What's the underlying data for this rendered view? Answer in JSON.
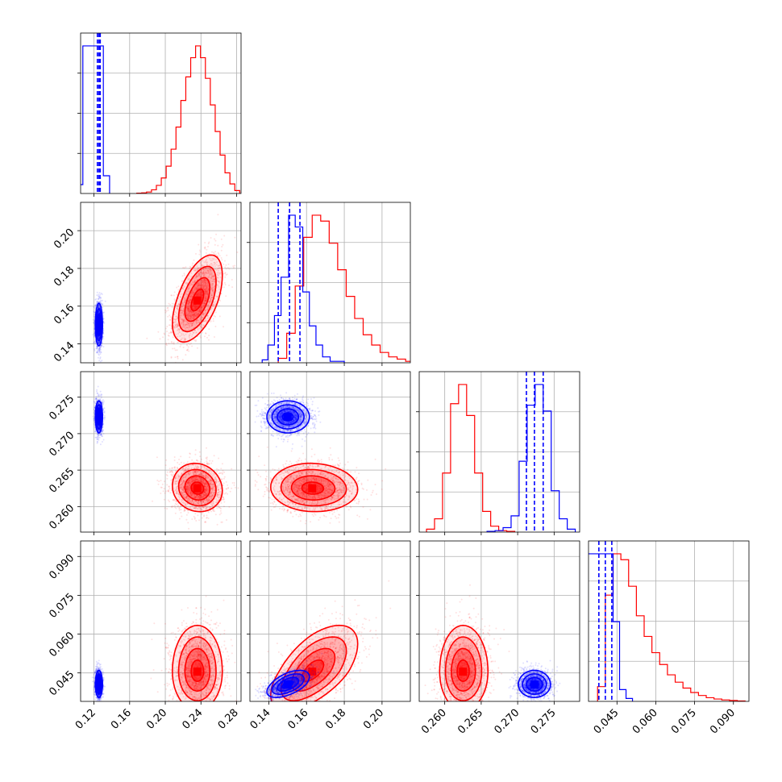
{
  "chart_data": {
    "type": "scatter",
    "layout": "corner",
    "grid": true,
    "legend": "none",
    "colors": {
      "a": "#ff0000",
      "b": "#0000ff"
    },
    "params": [
      {
        "id": "p0",
        "range": [
          0.105,
          0.285
        ],
        "ticks": [
          0.12,
          0.16,
          0.2,
          0.24,
          0.28
        ],
        "tick_labels": [
          "0.12",
          "0.16",
          "0.20",
          "0.24",
          "0.28"
        ]
      },
      {
        "id": "p1",
        "range": [
          0.13,
          0.215
        ],
        "ticks": [
          0.14,
          0.16,
          0.18,
          0.2
        ],
        "tick_labels": [
          "0.14",
          "0.16",
          "0.18",
          "0.20"
        ]
      },
      {
        "id": "p2",
        "range": [
          0.2565,
          0.2785
        ],
        "ticks": [
          0.26,
          0.265,
          0.27,
          0.275
        ],
        "tick_labels": [
          "0.260",
          "0.265",
          "0.270",
          "0.275"
        ]
      },
      {
        "id": "p3",
        "range": [
          0.034,
          0.096
        ],
        "ticks": [
          0.045,
          0.06,
          0.075,
          0.09
        ],
        "tick_labels": [
          "0.045",
          "0.060",
          "0.075",
          "0.090"
        ]
      }
    ],
    "series": [
      {
        "key": "a",
        "mean": [
          0.236,
          0.163,
          0.2625,
          0.0455
        ],
        "sd": [
          0.014,
          0.011,
          0.0016,
          0.0075
        ],
        "quantiles": [
          [
            0.222,
            0.236,
            0.25
          ],
          [
            0.152,
            0.163,
            0.175
          ],
          [
            0.261,
            0.2625,
            0.2642
          ],
          [
            0.04,
            0.0455,
            0.054
          ]
        ],
        "hists": [
          {
            "edges": [
              0.168,
              0.1735,
              0.179,
              0.1845,
              0.19,
              0.1955,
              0.201,
              0.2065,
              0.212,
              0.2175,
              0.223,
              0.2285,
              0.234,
              0.2395,
              0.245,
              0.2505,
              0.256,
              0.2615,
              0.267,
              0.2725,
              0.278,
              0.2835
            ],
            "counts": [
              0.2,
              0.4,
              1.0,
              2.5,
              5.5,
              10.5,
              18.5,
              30.0,
              45.0,
              63.0,
              79.0,
              92.0,
              100.0,
              92.0,
              78.0,
              60.0,
              42.0,
              26.0,
              14.0,
              6.5,
              2.0
            ]
          },
          {
            "edges": [
              0.145,
              0.1495,
              0.154,
              0.1585,
              0.163,
              0.1675,
              0.172,
              0.1765,
              0.181,
              0.1855,
              0.19,
              0.1945,
              0.199,
              0.2035,
              0.208,
              0.2125,
              0.217
            ],
            "counts": [
              3.0,
              20.0,
              52.0,
              85.0,
              100.0,
              96.0,
              81.0,
              63.0,
              45.0,
              30.0,
              19.0,
              12.0,
              7.0,
              4.0,
              2.5,
              1.0
            ]
          },
          {
            "edges": [
              0.2575,
              0.2586,
              0.2597,
              0.2608,
              0.2619,
              0.263,
              0.2641,
              0.2652,
              0.2663,
              0.2674,
              0.2685,
              0.2696
            ],
            "counts": [
              2.0,
              9.0,
              40.0,
              87.0,
              100.0,
              79.0,
              40.0,
              14.0,
              4.0,
              1.0,
              0.5
            ]
          },
          {
            "edges": [
              0.0375,
              0.0405,
              0.0435,
              0.0465,
              0.0495,
              0.0525,
              0.0555,
              0.0585,
              0.0615,
              0.0645,
              0.0675,
              0.0705,
              0.0735,
              0.0765,
              0.0795,
              0.0825,
              0.0855,
              0.0885,
              0.0915,
              0.0945
            ],
            "counts": [
              10.0,
              72.0,
              100.0,
              96.0,
              78.0,
              58.0,
              44.0,
              33.0,
              25.0,
              18.0,
              13.0,
              9.0,
              6.0,
              4.0,
              2.5,
              1.6,
              1.0,
              0.6,
              0.3
            ]
          }
        ]
      },
      {
        "key": "b",
        "mean": [
          0.1255,
          0.15,
          0.2723,
          0.0405
        ],
        "sd": [
          0.002,
          0.0055,
          0.0011,
          0.0025
        ],
        "quantiles": [
          [
            0.1238,
            0.1255,
            0.127
          ],
          [
            0.145,
            0.151,
            0.1565
          ],
          [
            0.2712,
            0.2723,
            0.2735
          ],
          [
            0.038,
            0.0405,
            0.043
          ]
        ],
        "hists": [
          {
            "edges": [
              0.1,
              0.1075,
              0.1155,
              0.123,
              0.1305,
              0.1375
            ],
            "counts": [
              6.0,
              100.0,
              100.0,
              100.0,
              12.0
            ]
          },
          {
            "edges": [
              0.1365,
              0.1395,
              0.143,
              0.1465,
              0.1505,
              0.154,
              0.158,
              0.1615,
              0.165,
              0.1685,
              0.1725,
              0.176,
              0.18
            ],
            "counts": [
              2.0,
              12.0,
              32.0,
              58.0,
              100.0,
              92.0,
              48.0,
              25.0,
              12.0,
              4.0,
              1.0,
              1.0
            ]
          },
          {
            "edges": [
              0.2658,
              0.2669,
              0.268,
              0.2691,
              0.2702,
              0.2713,
              0.2724,
              0.2735,
              0.2746,
              0.2757,
              0.2768,
              0.2779
            ],
            "counts": [
              0.5,
              1.0,
              3.0,
              11.0,
              48.0,
              86.0,
              100.0,
              82.0,
              28.0,
              9.0,
              2.0
            ]
          },
          {
            "edges": [
              0.0335,
              0.036,
              0.0385,
              0.041,
              0.0435,
              0.046,
              0.0485,
              0.051
            ],
            "counts": [
              100.0,
              100.0,
              100.0,
              100.0,
              54.0,
              8.0,
              2.0
            ]
          }
        ]
      }
    ],
    "scatter_n": 1800,
    "levels_sigma": [
      0.5,
      1.0,
      1.5,
      2.0
    ]
  }
}
